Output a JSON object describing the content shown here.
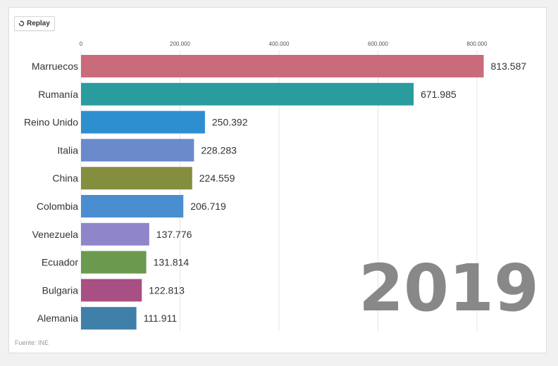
{
  "replay_label": "Replay",
  "year_label": "2019",
  "source": "Fuente: INE",
  "chart_data": {
    "type": "bar",
    "orientation": "horizontal",
    "categories": [
      "Marruecos",
      "Rumanía",
      "Reino Unido",
      "Italia",
      "China",
      "Colombia",
      "Venezuela",
      "Ecuador",
      "Bulgaria",
      "Alemania"
    ],
    "values": [
      813587,
      671985,
      250392,
      228283,
      224559,
      206719,
      137776,
      131814,
      122813,
      111911
    ],
    "value_labels": [
      "813.587",
      "671.985",
      "250.392",
      "228.283",
      "224.559",
      "206.719",
      "137.776",
      "131.814",
      "122.813",
      "111.911"
    ],
    "colors": [
      "#c96b7b",
      "#2a9c9e",
      "#2d8fcf",
      "#6a8acb",
      "#858d3e",
      "#4b8ed0",
      "#8f85c9",
      "#6b9a4f",
      "#a84f83",
      "#3f7fa8"
    ],
    "xticks": [
      0,
      200000,
      400000,
      600000,
      800000
    ],
    "xtick_labels": [
      "0",
      "200.000",
      "400.000",
      "600.000",
      "800.000"
    ],
    "xlim": [
      0,
      800000
    ],
    "grid": true,
    "year": "2019"
  }
}
